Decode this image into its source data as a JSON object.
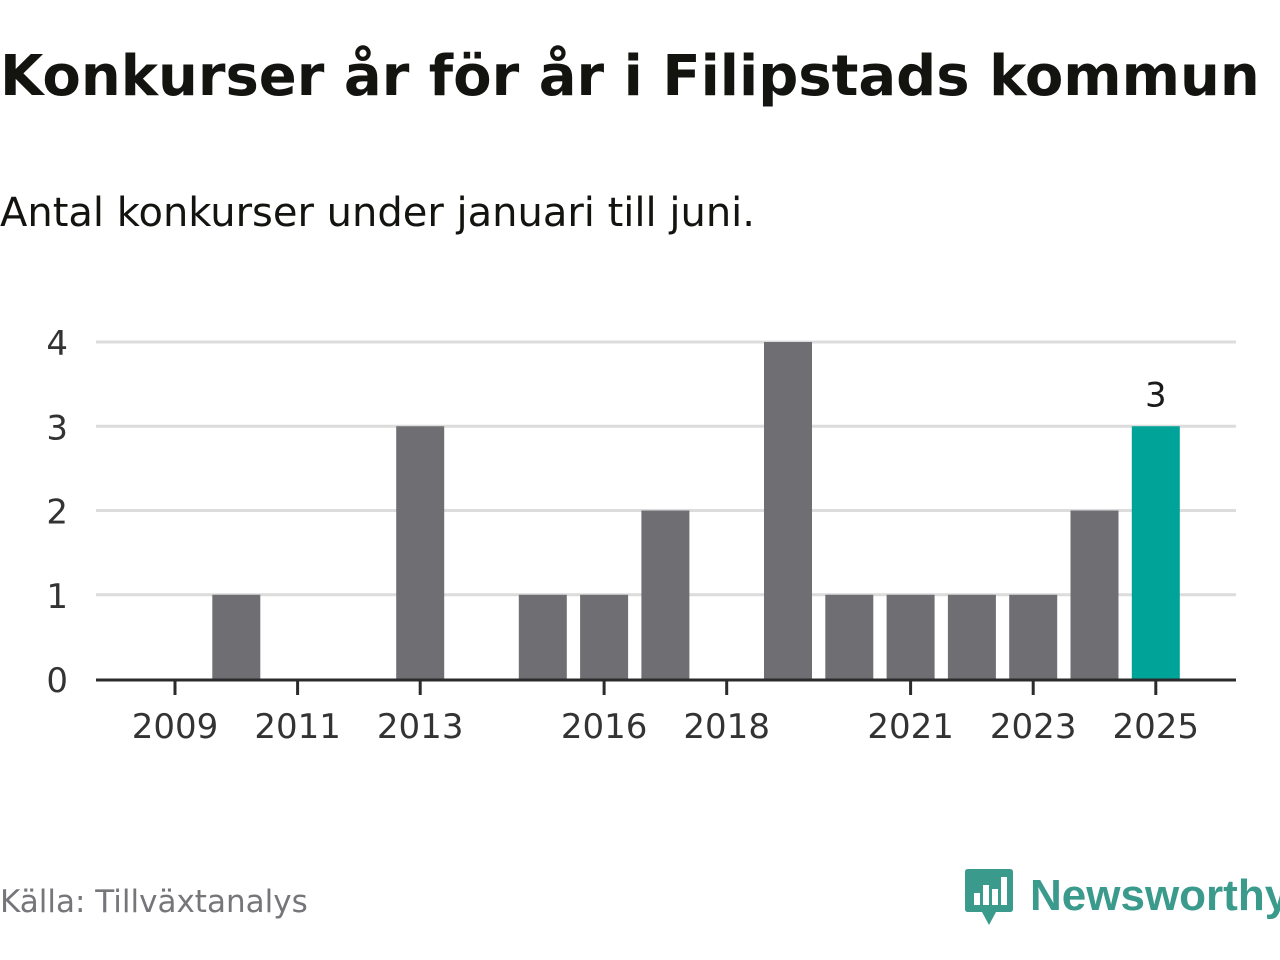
{
  "title": "Konkurser år för år i Filipstads kommun",
  "subtitle": "Antal konkurser under januari till juni.",
  "source": "Källa: Tillväxtanalys",
  "brand": "Newsworthy",
  "colors": {
    "bar": "#6f6e73",
    "highlight": "#00a398",
    "grid": "#dcdcdc",
    "axis": "#2b2b2b",
    "text": "#333333",
    "brand": "#3a9a8c"
  },
  "chart_data": {
    "type": "bar",
    "categories": [
      "2009",
      "2010",
      "2011",
      "2012",
      "2013",
      "2014",
      "2015",
      "2016",
      "2017",
      "2018",
      "2019",
      "2020",
      "2021",
      "2022",
      "2023",
      "2024",
      "2025"
    ],
    "values": [
      0,
      1,
      0,
      0,
      3,
      0,
      1,
      1,
      2,
      0,
      4,
      1,
      1,
      1,
      1,
      2,
      3
    ],
    "x_tick_labels": [
      "2009",
      "2011",
      "2013",
      "2016",
      "2018",
      "2021",
      "2023",
      "2025"
    ],
    "y_ticks": [
      "0",
      "1",
      "2",
      "3",
      "4"
    ],
    "ylim": [
      0,
      4
    ],
    "highlight_category": "2025",
    "data_labels": [
      {
        "category": "2025",
        "text": "3"
      }
    ],
    "grid": true,
    "xlabel": "",
    "ylabel": ""
  }
}
